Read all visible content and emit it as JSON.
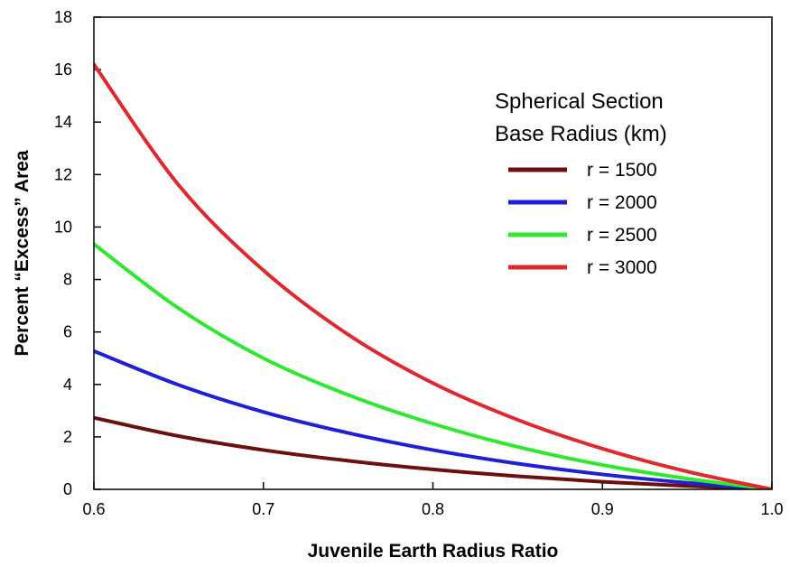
{
  "chart_data": {
    "type": "line",
    "title": "",
    "xlabel": "Juvenile Earth Radius Ratio",
    "ylabel": "Percent “Excess” Area",
    "xlim": [
      0.6,
      1.0
    ],
    "ylim": [
      0,
      18
    ],
    "xticks": [
      "0.6",
      "0.7",
      "0.8",
      "0.9",
      "1.0"
    ],
    "yticks": [
      "0",
      "2",
      "4",
      "6",
      "8",
      "10",
      "12",
      "14",
      "16",
      "18"
    ],
    "grid": false,
    "legend": {
      "title_lines": [
        "Spherical Section",
        "Base Radius (km)"
      ],
      "placement": "top-right"
    },
    "x": [
      0.6,
      0.65,
      0.7,
      0.75,
      0.8,
      0.85,
      0.9,
      0.95,
      1.0
    ],
    "series": [
      {
        "name": "r = 1500",
        "color": "#6b0f0f",
        "values": [
          2.73,
          2.03,
          1.5,
          1.09,
          0.76,
          0.5,
          0.29,
          0.13,
          0.0
        ]
      },
      {
        "name": "r = 2000",
        "color": "#1f1fd6",
        "values": [
          5.27,
          3.98,
          2.95,
          2.15,
          1.5,
          0.98,
          0.57,
          0.25,
          0.0
        ]
      },
      {
        "name": "r = 2500",
        "color": "#2ee82e",
        "values": [
          9.35,
          6.9,
          5.0,
          3.6,
          2.5,
          1.62,
          0.93,
          0.41,
          0.0
        ]
      },
      {
        "name": "r = 3000",
        "color": "#e0282e",
        "values": [
          16.2,
          11.6,
          8.35,
          5.9,
          4.05,
          2.65,
          1.55,
          0.68,
          0.0
        ]
      }
    ]
  }
}
